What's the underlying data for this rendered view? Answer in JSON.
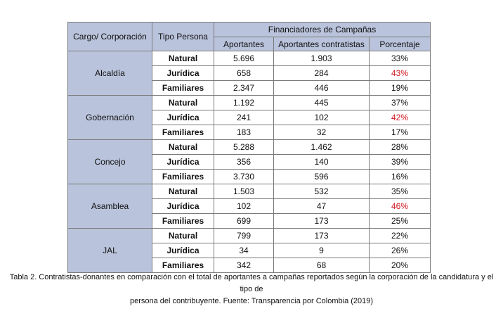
{
  "table": {
    "headers": {
      "cargo": "Cargo/ Corporación",
      "tipo": "Tipo Persona",
      "group": "Financiadores de Campañas",
      "aportantes": "Aportantes",
      "contratistas": "Aportantes contratistas",
      "porcentaje": "Porcentaje"
    },
    "groups": [
      {
        "name": "Alcaldía",
        "rows": [
          {
            "tipo": "Natural",
            "aportantes": "5.696",
            "contratistas": "1.903",
            "porcentaje": "33%",
            "highlight": false
          },
          {
            "tipo": "Jurídica",
            "aportantes": "658",
            "contratistas": "284",
            "porcentaje": "43%",
            "highlight": true
          },
          {
            "tipo": "Familiares",
            "aportantes": "2.347",
            "contratistas": "446",
            "porcentaje": "19%",
            "highlight": false
          }
        ]
      },
      {
        "name": "Gobernación",
        "rows": [
          {
            "tipo": "Natural",
            "aportantes": "1.192",
            "contratistas": "445",
            "porcentaje": "37%",
            "highlight": false
          },
          {
            "tipo": "Jurídica",
            "aportantes": "241",
            "contratistas": "102",
            "porcentaje": "42%",
            "highlight": true
          },
          {
            "tipo": "Familiares",
            "aportantes": "183",
            "contratistas": "32",
            "porcentaje": "17%",
            "highlight": false
          }
        ]
      },
      {
        "name": "Concejo",
        "rows": [
          {
            "tipo": "Natural",
            "aportantes": "5.288",
            "contratistas": "1.462",
            "porcentaje": "28%",
            "highlight": false
          },
          {
            "tipo": "Jurídica",
            "aportantes": "356",
            "contratistas": "140",
            "porcentaje": "39%",
            "highlight": false
          },
          {
            "tipo": "Familiares",
            "aportantes": "3.730",
            "contratistas": "596",
            "porcentaje": "16%",
            "highlight": false
          }
        ]
      },
      {
        "name": "Asamblea",
        "rows": [
          {
            "tipo": "Natural",
            "aportantes": "1.503",
            "contratistas": "532",
            "porcentaje": "35%",
            "highlight": false
          },
          {
            "tipo": "Jurídica",
            "aportantes": "102",
            "contratistas": "47",
            "porcentaje": "46%",
            "highlight": true
          },
          {
            "tipo": "Familiares",
            "aportantes": "699",
            "contratistas": "173",
            "porcentaje": "25%",
            "highlight": false
          }
        ]
      },
      {
        "name": "JAL",
        "rows": [
          {
            "tipo": "Natural",
            "aportantes": "799",
            "contratistas": "173",
            "porcentaje": "22%",
            "highlight": false
          },
          {
            "tipo": "Jurídica",
            "aportantes": "34",
            "contratistas": "9",
            "porcentaje": "26%",
            "highlight": false
          },
          {
            "tipo": "Familiares",
            "aportantes": "342",
            "contratistas": "68",
            "porcentaje": "20%",
            "highlight": false
          }
        ]
      }
    ]
  },
  "caption": {
    "line1": "Tabla 2. Contratistas-donantes en comparación con el total de aportantes a campañas reportados según la corporación de la candidatura y el tipo de",
    "line2": "persona del contribuyente. Fuente: Transparencia por Colombia (2019)"
  },
  "colors": {
    "header_bg": "#b9c3db",
    "highlight_text": "#d0141c",
    "border": "#7a7a7a"
  }
}
